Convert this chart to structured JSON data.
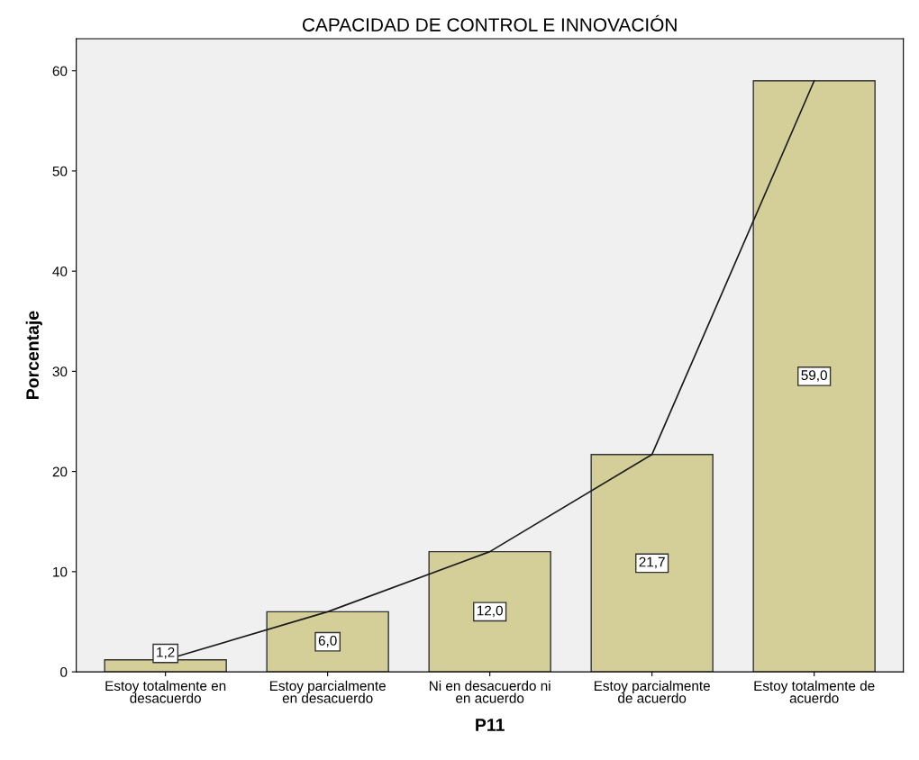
{
  "chart_data": {
    "type": "bar",
    "title": "CAPACIDAD DE CONTROL E INNOVACIÓN",
    "xlabel": "P11",
    "ylabel": "Porcentaje",
    "categories": [
      "Estoy totalmente en\ndesacuerdo",
      "Estoy parcialmente\nen desacuerdo",
      "Ni en desacuerdo ni\nen acuerdo",
      "Estoy parcialmente\nde acuerdo",
      "Estoy totalmente de\nacuerdo"
    ],
    "series": [
      {
        "color": "#d4cf98",
        "values": [
          1.2,
          6.0,
          12.0,
          21.7,
          59.0
        ],
        "value_labels": [
          "1,2",
          "6,0",
          "12,0",
          "21,7",
          "59,0"
        ]
      },
      {
        "type": "line",
        "color": "#1a1a1a",
        "values": [
          1.2,
          6.0,
          12.0,
          21.7,
          59.0
        ]
      }
    ],
    "ylim": [
      0,
      63.2
    ],
    "yticks": [
      0,
      10,
      20,
      30,
      40,
      50,
      60
    ],
    "grid": false,
    "legend": false
  }
}
